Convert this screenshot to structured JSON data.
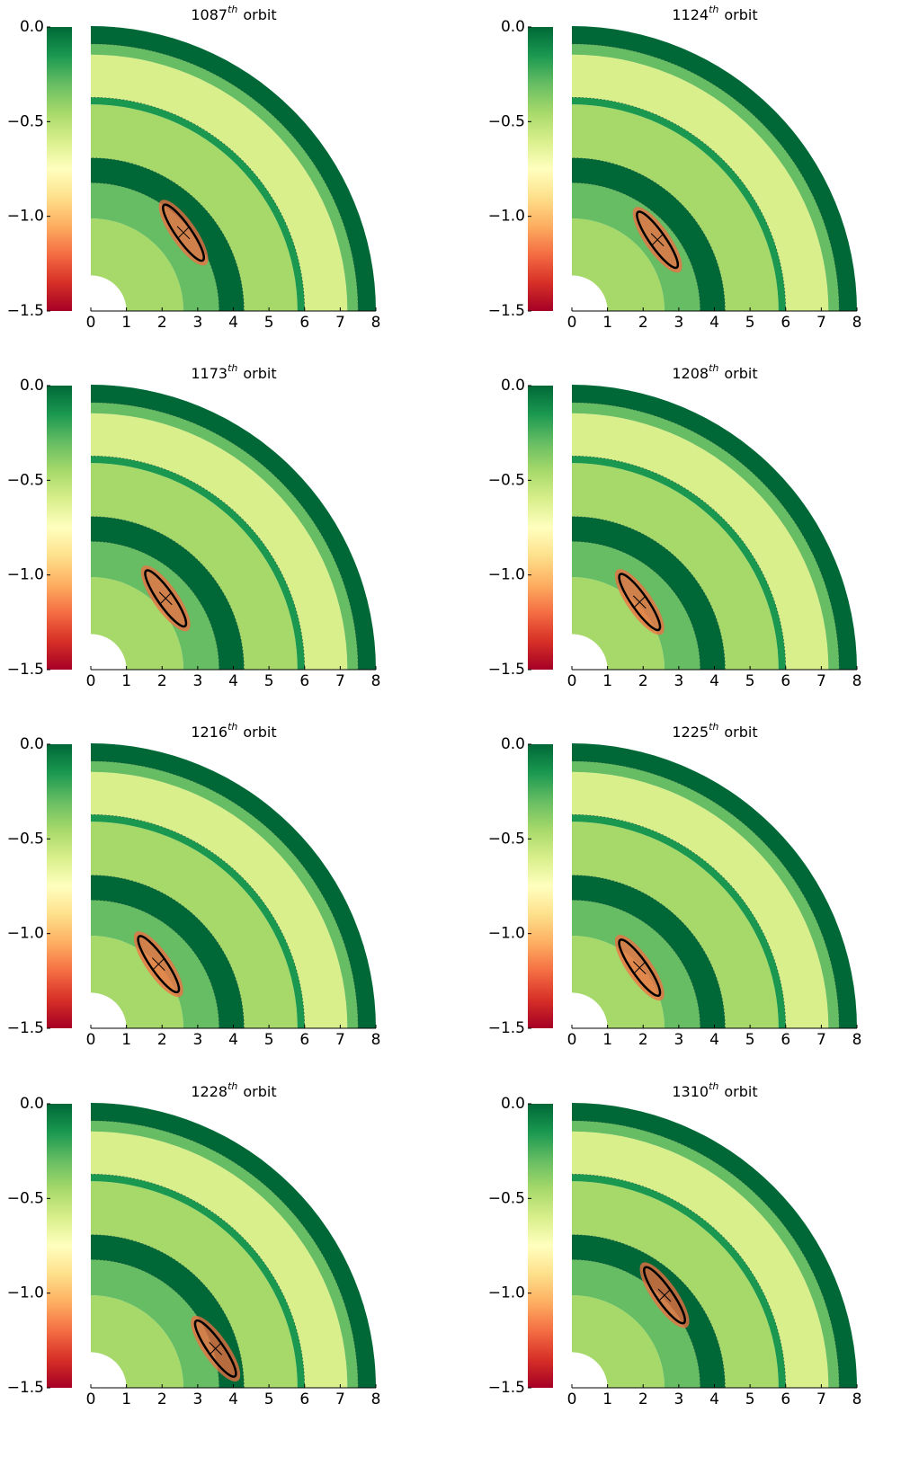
{
  "chart_data": [
    {
      "type": "heatmap",
      "title": {
        "number": "1087",
        "sup": "th",
        "word": "orbit"
      },
      "xlim": [
        0,
        8
      ],
      "xticks": [
        0,
        1,
        2,
        3,
        4,
        5,
        6,
        7,
        8
      ],
      "clim": [
        -1.5,
        0
      ],
      "cticks": [
        {
          "value": 0,
          "label": "0.0"
        },
        {
          "value": -0.5,
          "label": "−0.5"
        },
        {
          "value": -1,
          "label": "−1.0"
        },
        {
          "value": -1.5,
          "label": "−1.5"
        }
      ],
      "colormap": [
        "#a50026",
        "#d73027",
        "#f46d43",
        "#fdae61",
        "#fee08b",
        "#ffffbf",
        "#d9ef8b",
        "#a6d96a",
        "#66bd63",
        "#1a9850",
        "#006837"
      ]
    },
    {
      "type": "heatmap",
      "title": {
        "number": "1124",
        "sup": "th",
        "word": "orbit"
      },
      "xlim": [
        0,
        8
      ],
      "xticks": [
        0,
        1,
        2,
        3,
        4,
        5,
        6,
        7,
        8
      ],
      "clim": [
        -1.5,
        0
      ],
      "cticks": [
        {
          "value": 0,
          "label": "0.0"
        },
        {
          "value": -0.5,
          "label": "−0.5"
        },
        {
          "value": -1,
          "label": "−1.0"
        },
        {
          "value": -1.5,
          "label": "−1.5"
        }
      ],
      "colormap": [
        "#a50026",
        "#d73027",
        "#f46d43",
        "#fdae61",
        "#fee08b",
        "#ffffbf",
        "#d9ef8b",
        "#a6d96a",
        "#66bd63",
        "#1a9850",
        "#006837"
      ]
    },
    {
      "type": "heatmap",
      "title": {
        "number": "1173",
        "sup": "th",
        "word": "orbit"
      },
      "xlim": [
        0,
        8
      ],
      "xticks": [
        0,
        1,
        2,
        3,
        4,
        5,
        6,
        7,
        8
      ],
      "clim": [
        -1.5,
        0
      ],
      "cticks": [
        {
          "value": 0,
          "label": "0.0"
        },
        {
          "value": -0.5,
          "label": "−0.5"
        },
        {
          "value": -1,
          "label": "−1.0"
        },
        {
          "value": -1.5,
          "label": "−1.5"
        }
      ],
      "colormap": [
        "#a50026",
        "#d73027",
        "#f46d43",
        "#fdae61",
        "#fee08b",
        "#ffffbf",
        "#d9ef8b",
        "#a6d96a",
        "#66bd63",
        "#1a9850",
        "#006837"
      ]
    },
    {
      "type": "heatmap",
      "title": {
        "number": "1208",
        "sup": "th",
        "word": "orbit"
      },
      "xlim": [
        0,
        8
      ],
      "xticks": [
        0,
        1,
        2,
        3,
        4,
        5,
        6,
        7,
        8
      ],
      "clim": [
        -1.5,
        0
      ],
      "cticks": [
        {
          "value": 0,
          "label": "0.0"
        },
        {
          "value": -0.5,
          "label": "−0.5"
        },
        {
          "value": -1,
          "label": "−1.0"
        },
        {
          "value": -1.5,
          "label": "−1.5"
        }
      ],
      "colormap": [
        "#a50026",
        "#d73027",
        "#f46d43",
        "#fdae61",
        "#fee08b",
        "#ffffbf",
        "#d9ef8b",
        "#a6d96a",
        "#66bd63",
        "#1a9850",
        "#006837"
      ]
    },
    {
      "type": "heatmap",
      "title": {
        "number": "1216",
        "sup": "th",
        "word": "orbit"
      },
      "xlim": [
        0,
        8
      ],
      "xticks": [
        0,
        1,
        2,
        3,
        4,
        5,
        6,
        7,
        8
      ],
      "clim": [
        -1.5,
        0
      ],
      "cticks": [
        {
          "value": 0,
          "label": "0.0"
        },
        {
          "value": -0.5,
          "label": "−0.5"
        },
        {
          "value": -1,
          "label": "−1.0"
        },
        {
          "value": -1.5,
          "label": "−1.5"
        }
      ],
      "colormap": [
        "#a50026",
        "#d73027",
        "#f46d43",
        "#fdae61",
        "#fee08b",
        "#ffffbf",
        "#d9ef8b",
        "#a6d96a",
        "#66bd63",
        "#1a9850",
        "#006837"
      ]
    },
    {
      "type": "heatmap",
      "title": {
        "number": "1225",
        "sup": "th",
        "word": "orbit"
      },
      "xlim": [
        0,
        8
      ],
      "xticks": [
        0,
        1,
        2,
        3,
        4,
        5,
        6,
        7,
        8
      ],
      "clim": [
        -1.5,
        0
      ],
      "cticks": [
        {
          "value": 0,
          "label": "0.0"
        },
        {
          "value": -0.5,
          "label": "−0.5"
        },
        {
          "value": -1,
          "label": "−1.0"
        },
        {
          "value": -1.5,
          "label": "−1.5"
        }
      ],
      "colormap": [
        "#a50026",
        "#d73027",
        "#f46d43",
        "#fdae61",
        "#fee08b",
        "#ffffbf",
        "#d9ef8b",
        "#a6d96a",
        "#66bd63",
        "#1a9850",
        "#006837"
      ]
    },
    {
      "type": "heatmap",
      "title": {
        "number": "1228",
        "sup": "th",
        "word": "orbit"
      },
      "xlim": [
        0,
        8
      ],
      "xticks": [
        0,
        1,
        2,
        3,
        4,
        5,
        6,
        7,
        8
      ],
      "clim": [
        -1.5,
        0
      ],
      "cticks": [
        {
          "value": 0,
          "label": "0.0"
        },
        {
          "value": -0.5,
          "label": "−0.5"
        },
        {
          "value": -1,
          "label": "−1.0"
        },
        {
          "value": -1.5,
          "label": "−1.5"
        }
      ],
      "colormap": [
        "#a50026",
        "#d73027",
        "#f46d43",
        "#fdae61",
        "#fee08b",
        "#ffffbf",
        "#d9ef8b",
        "#a6d96a",
        "#66bd63",
        "#1a9850",
        "#006837"
      ]
    },
    {
      "type": "heatmap",
      "title": {
        "number": "1310",
        "sup": "th",
        "word": "orbit"
      },
      "xlim": [
        0,
        8
      ],
      "xticks": [
        0,
        1,
        2,
        3,
        4,
        5,
        6,
        7,
        8
      ],
      "clim": [
        -1.5,
        0
      ],
      "cticks": [
        {
          "value": 0,
          "label": "0.0"
        },
        {
          "value": -0.5,
          "label": "−0.5"
        },
        {
          "value": -1,
          "label": "−1.0"
        },
        {
          "value": -1.5,
          "label": "−1.5"
        }
      ],
      "colormap": [
        "#a50026",
        "#d73027",
        "#f46d43",
        "#fdae61",
        "#fee08b",
        "#ffffbf",
        "#d9ef8b",
        "#a6d96a",
        "#66bd63",
        "#1a9850",
        "#006837"
      ]
    }
  ]
}
